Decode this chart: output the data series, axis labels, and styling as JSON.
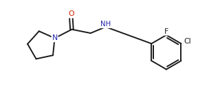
{
  "bg_color": "#ffffff",
  "line_color": "#1a1a1a",
  "N_color": "#2222aa",
  "O_color": "#cc2200",
  "line_width": 1.4,
  "font_size": 7.8,
  "fig_width": 3.2,
  "fig_height": 1.32,
  "dpi": 100,
  "xlim": [
    -0.5,
    10.0
  ],
  "ylim": [
    -2.4,
    1.6
  ]
}
